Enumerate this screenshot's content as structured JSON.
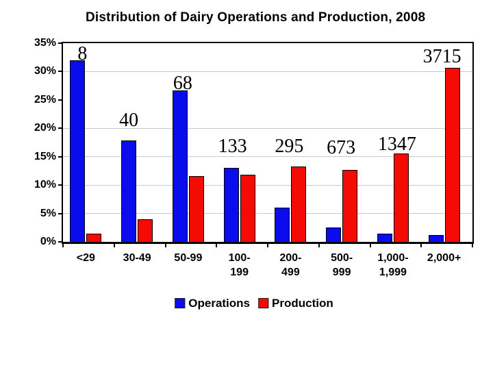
{
  "chart_data": {
    "type": "bar",
    "title": "Distribution of Dairy Operations and Production, 2008",
    "categories": [
      "<29",
      "30-49",
      "50-99",
      "100-199",
      "200-499",
      "500-999",
      "1,000-1,999",
      "2,000+"
    ],
    "category_label_lines": [
      [
        "<29"
      ],
      [
        "30-49"
      ],
      [
        "50-99"
      ],
      [
        "100-",
        "199"
      ],
      [
        "200-",
        "499"
      ],
      [
        "500-",
        "999"
      ],
      [
        "1,000-",
        "1,999"
      ],
      [
        "2,000+"
      ]
    ],
    "series": [
      {
        "name": "Operations",
        "color": "#0a0cee",
        "values": [
          32.0,
          17.9,
          26.7,
          13.0,
          6.0,
          2.5,
          1.5,
          1.2
        ]
      },
      {
        "name": "Production",
        "color": "#f40b04",
        "values": [
          1.4,
          4.0,
          11.6,
          11.8,
          13.3,
          12.7,
          15.6,
          30.6
        ]
      }
    ],
    "annotations": [
      {
        "text": "8",
        "group": 0,
        "dx": -5,
        "y_pct": 32.0
      },
      {
        "text": "40",
        "group": 1,
        "dx": -12,
        "y_pct": 20.3
      },
      {
        "text": "68",
        "group": 2,
        "dx": -8,
        "y_pct": 26.8
      },
      {
        "text": "133",
        "group": 3,
        "dx": -10,
        "y_pct": 15.7
      },
      {
        "text": "295",
        "group": 4,
        "dx": -2,
        "y_pct": 15.7
      },
      {
        "text": "673",
        "group": 5,
        "dx": -1,
        "y_pct": 15.5
      },
      {
        "text": "1347",
        "group": 6,
        "dx": 6,
        "y_pct": 16.0
      },
      {
        "text": "3715",
        "group": 7,
        "dx": -3,
        "y_pct": 31.5
      }
    ],
    "xlabel": "",
    "ylabel": "",
    "ylim": [
      0,
      35
    ],
    "ytick_labels": [
      "0%",
      "5%",
      "10%",
      "15%",
      "20%",
      "25%",
      "30%",
      "35%"
    ],
    "gridlines_pct": [
      5,
      10,
      15,
      20,
      30
    ],
    "grid_color": "#c9c9c9",
    "axis_color": "#000000",
    "legend": {
      "position": "bottom",
      "entries": [
        "Operations",
        "Production"
      ]
    }
  }
}
